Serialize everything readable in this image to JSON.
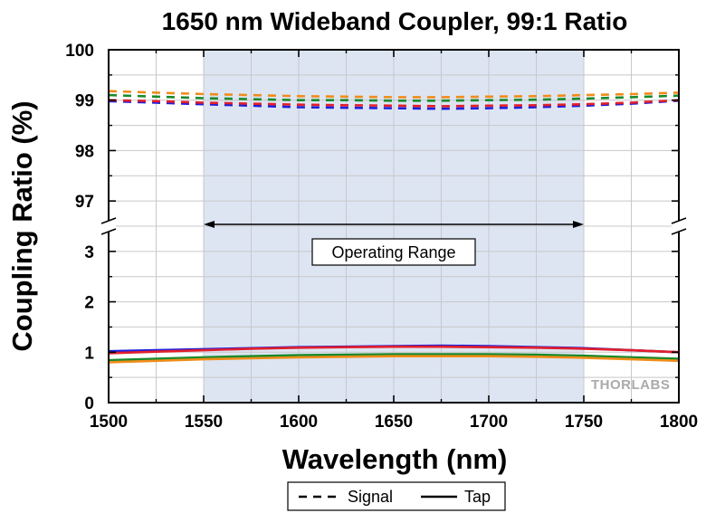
{
  "chart_data": {
    "type": "line",
    "title": "1650 nm Wideband Coupler, 99:1 Ratio",
    "xlabel": "Wavelength (nm)",
    "ylabel": "Coupling Ratio (%)",
    "xlim": [
      1500,
      1800
    ],
    "x_ticks": [
      "1500",
      "1550",
      "1600",
      "1650",
      "1700",
      "1750",
      "1800"
    ],
    "y_panels": {
      "upper": {
        "ylim": [
          96.5,
          100
        ],
        "ticks": [
          "97",
          "98",
          "99",
          "100"
        ]
      },
      "lower": {
        "ylim": [
          0,
          3.5
        ],
        "ticks": [
          "0",
          "1",
          "2",
          "3"
        ]
      }
    },
    "y_axis_break": true,
    "grid": true,
    "highlight_range": {
      "x": [
        1550,
        1750
      ],
      "color": "#dde5f3"
    },
    "annotations": [
      {
        "text": "Operating Range",
        "x_from": 1550,
        "x_to": 1750,
        "arrow": "double"
      }
    ],
    "legend": {
      "placement": "bottom-center",
      "entries": [
        {
          "label": "Signal",
          "style": "dashed"
        },
        {
          "label": "Tap",
          "style": "solid"
        }
      ]
    },
    "watermark": "THORLABS",
    "x": [
      1500,
      1525,
      1550,
      1575,
      1600,
      1625,
      1650,
      1675,
      1700,
      1725,
      1750,
      1775,
      1800
    ],
    "series": [
      {
        "name": "Signal (blue)",
        "style": "dashed",
        "color": "#1f1fdc",
        "values": [
          98.98,
          98.95,
          98.92,
          98.89,
          98.86,
          98.85,
          98.84,
          98.83,
          98.84,
          98.86,
          98.89,
          98.93,
          98.99
        ]
      },
      {
        "name": "Signal (red)",
        "style": "dashed",
        "color": "#e21f2b",
        "values": [
          99.0,
          98.98,
          98.95,
          98.93,
          98.91,
          98.9,
          98.89,
          98.88,
          98.89,
          98.9,
          98.92,
          98.95,
          99.0
        ]
      },
      {
        "name": "Signal (green)",
        "style": "dashed",
        "color": "#1a8a2b",
        "values": [
          99.1,
          99.07,
          99.04,
          99.02,
          99.0,
          99.0,
          98.99,
          98.99,
          99.0,
          99.01,
          99.03,
          99.06,
          99.09
        ]
      },
      {
        "name": "Signal (orange)",
        "style": "dashed",
        "color": "#f08c1a",
        "values": [
          99.18,
          99.15,
          99.12,
          99.1,
          99.08,
          99.07,
          99.06,
          99.06,
          99.07,
          99.08,
          99.1,
          99.12,
          99.15
        ]
      },
      {
        "name": "Tap (blue)",
        "style": "solid",
        "color": "#1f1fdc",
        "values": [
          1.02,
          1.04,
          1.06,
          1.08,
          1.1,
          1.11,
          1.12,
          1.13,
          1.12,
          1.1,
          1.08,
          1.04,
          1.0
        ]
      },
      {
        "name": "Tap (red)",
        "style": "solid",
        "color": "#e21f2b",
        "values": [
          0.98,
          1.01,
          1.04,
          1.07,
          1.09,
          1.1,
          1.11,
          1.11,
          1.1,
          1.09,
          1.07,
          1.04,
          1.0
        ]
      },
      {
        "name": "Tap (green)",
        "style": "solid",
        "color": "#1a8a2b",
        "values": [
          0.84,
          0.87,
          0.9,
          0.92,
          0.94,
          0.95,
          0.96,
          0.96,
          0.96,
          0.95,
          0.93,
          0.9,
          0.87
        ]
      },
      {
        "name": "Tap (orange)",
        "style": "solid",
        "color": "#f08c1a",
        "values": [
          0.8,
          0.83,
          0.86,
          0.88,
          0.9,
          0.91,
          0.92,
          0.92,
          0.92,
          0.91,
          0.89,
          0.86,
          0.83
        ]
      }
    ]
  }
}
